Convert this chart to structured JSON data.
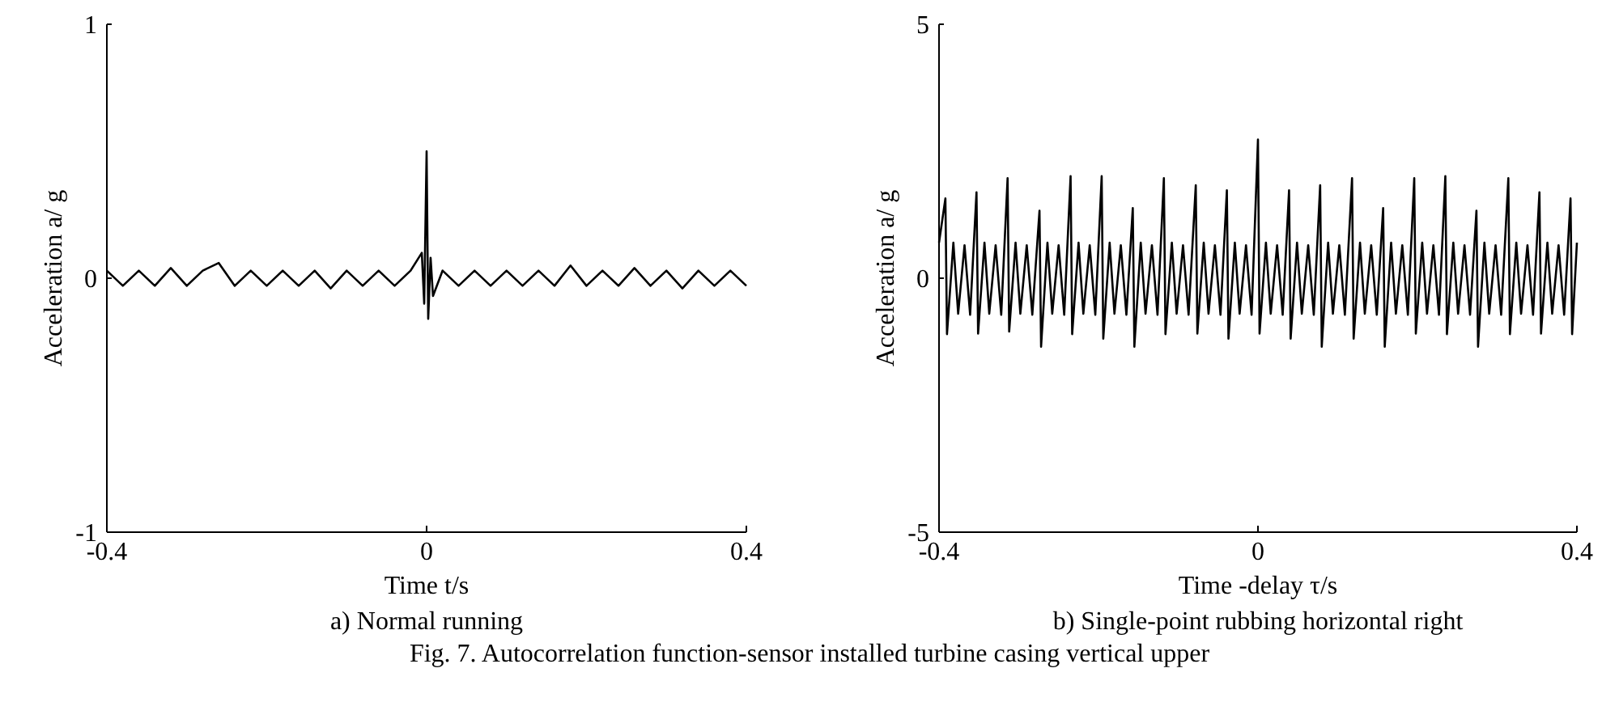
{
  "chart_data": [
    {
      "type": "line",
      "title": "a) Normal running",
      "xlabel": "Time t/s",
      "ylabel": "Acceleration a/ g",
      "xlim": [
        -0.4,
        0.4
      ],
      "ylim": [
        -1,
        1
      ],
      "xticks": [
        -0.4,
        0,
        0.4
      ],
      "yticks": [
        -1,
        0,
        1
      ],
      "grid": false,
      "marker": "none",
      "line_style": "solid",
      "series": [
        {
          "color": "#000000",
          "x": [
            -0.4,
            -0.38,
            -0.36,
            -0.34,
            -0.32,
            -0.3,
            -0.28,
            -0.26,
            -0.24,
            -0.22,
            -0.2,
            -0.18,
            -0.16,
            -0.14,
            -0.12,
            -0.1,
            -0.08,
            -0.06,
            -0.04,
            -0.02,
            -0.006,
            -0.003,
            0,
            0.002,
            0.005,
            0.008,
            0.02,
            0.04,
            0.06,
            0.08,
            0.1,
            0.12,
            0.14,
            0.16,
            0.18,
            0.2,
            0.22,
            0.24,
            0.26,
            0.28,
            0.3,
            0.32,
            0.34,
            0.36,
            0.38,
            0.4
          ],
          "values": [
            0.03,
            -0.03,
            0.03,
            -0.03,
            0.04,
            -0.03,
            0.03,
            0.06,
            -0.03,
            0.03,
            -0.03,
            0.03,
            -0.03,
            0.03,
            -0.04,
            0.03,
            -0.03,
            0.03,
            -0.03,
            0.03,
            0.1,
            -0.1,
            0.5,
            -0.16,
            0.08,
            -0.07,
            0.03,
            -0.03,
            0.03,
            -0.03,
            0.03,
            -0.03,
            0.03,
            -0.03,
            0.05,
            -0.03,
            0.03,
            -0.03,
            0.04,
            -0.03,
            0.03,
            -0.04,
            0.03,
            -0.03,
            0.03,
            -0.03
          ]
        }
      ]
    },
    {
      "type": "line",
      "title": "b) Single-point rubbing horizontal right",
      "xlabel": "Time -delay τ/s",
      "ylabel": "Acceleration a/ g",
      "xlim": [
        -0.4,
        0.4
      ],
      "ylim": [
        -5,
        5
      ],
      "xticks": [
        -0.4,
        0,
        0.4
      ],
      "yticks": [
        -5,
        0,
        5
      ],
      "grid": false,
      "marker": "none",
      "line_style": "solid",
      "annotations": [
        "Fig. 7. Autocorrelation function-sensor installed turbine casing vertical upper"
      ],
      "series": [
        {
          "color": "#000000",
          "x": [
            -0.4,
            -0.392,
            -0.39,
            -0.382,
            -0.376,
            -0.368,
            -0.361,
            -0.353,
            -0.351,
            -0.343,
            -0.337,
            -0.329,
            -0.322,
            -0.314,
            -0.312,
            -0.304,
            -0.298,
            -0.29,
            -0.283,
            -0.274,
            -0.272,
            -0.264,
            -0.258,
            -0.25,
            -0.243,
            -0.235,
            -0.233,
            -0.225,
            -0.219,
            -0.211,
            -0.204,
            -0.196,
            -0.194,
            -0.186,
            -0.18,
            -0.172,
            -0.165,
            -0.157,
            -0.155,
            -0.147,
            -0.141,
            -0.133,
            -0.126,
            -0.118,
            -0.116,
            -0.108,
            -0.102,
            -0.094,
            -0.087,
            -0.078,
            -0.076,
            -0.068,
            -0.062,
            -0.054,
            -0.047,
            -0.039,
            -0.037,
            -0.029,
            -0.023,
            -0.015,
            -0.008,
            0,
            0.002,
            0.01,
            0.016,
            0.024,
            0.031,
            0.039,
            0.041,
            0.049,
            0.055,
            0.063,
            0.07,
            0.078,
            0.08,
            0.088,
            0.094,
            0.102,
            0.109,
            0.118,
            0.12,
            0.128,
            0.134,
            0.142,
            0.149,
            0.157,
            0.159,
            0.167,
            0.173,
            0.181,
            0.188,
            0.196,
            0.198,
            0.206,
            0.212,
            0.22,
            0.227,
            0.235,
            0.237,
            0.245,
            0.251,
            0.259,
            0.266,
            0.274,
            0.276,
            0.284,
            0.29,
            0.298,
            0.305,
            0.314,
            0.316,
            0.324,
            0.33,
            0.338,
            0.345,
            0.353,
            0.355,
            0.363,
            0.369,
            0.377,
            0.384,
            0.392,
            0.394,
            0.4
          ],
          "values": [
            0.7,
            1.57,
            -1.1,
            0.7,
            -0.7,
            0.65,
            -0.72,
            1.69,
            -1.09,
            0.7,
            -0.7,
            0.65,
            -0.72,
            1.97,
            -1.05,
            0.7,
            -0.7,
            0.65,
            -0.72,
            1.33,
            -1.35,
            0.7,
            -0.7,
            0.65,
            -0.72,
            2.01,
            -1.1,
            0.7,
            -0.7,
            0.65,
            -0.72,
            2.01,
            -1.19,
            0.7,
            -0.7,
            0.65,
            -0.72,
            1.38,
            -1.35,
            0.7,
            -0.7,
            0.65,
            -0.72,
            1.97,
            -1.1,
            0.7,
            -0.7,
            0.65,
            -0.72,
            1.83,
            -1.09,
            0.7,
            -0.7,
            0.65,
            -0.72,
            1.73,
            -1.19,
            0.7,
            -0.7,
            0.65,
            -0.72,
            2.73,
            -1.09,
            0.7,
            -0.7,
            0.65,
            -0.72,
            1.73,
            -1.19,
            0.7,
            -0.7,
            0.65,
            -0.72,
            1.83,
            -1.35,
            0.7,
            -0.7,
            0.65,
            -0.72,
            1.97,
            -1.19,
            0.7,
            -0.7,
            0.65,
            -0.72,
            1.38,
            -1.35,
            0.7,
            -0.7,
            0.65,
            -0.72,
            1.97,
            -1.09,
            0.7,
            -0.7,
            0.65,
            -0.72,
            2.01,
            -1.1,
            0.7,
            -0.7,
            0.65,
            -0.72,
            1.33,
            -1.35,
            0.7,
            -0.7,
            0.65,
            -0.72,
            1.97,
            -1.1,
            0.7,
            -0.7,
            0.65,
            -0.72,
            1.69,
            -1.09,
            0.7,
            -0.7,
            0.65,
            -0.72,
            1.57,
            -1.1,
            0.7
          ]
        }
      ]
    }
  ]
}
